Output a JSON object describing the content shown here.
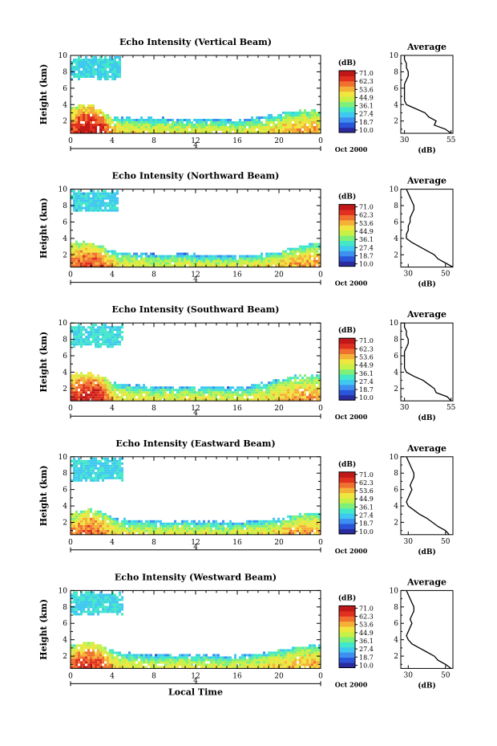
{
  "figure": {
    "x_axis_label": "Local Time",
    "date_label": "Oct 2000",
    "center_tick_label": "4",
    "unit_label": "(dB)",
    "avg_title": "Average",
    "avg_xlabel": "(dB)",
    "y_axis_label": "Height (km)"
  },
  "colorbar": {
    "ticks": [
      "71.0",
      "62.3",
      "53.6",
      "44.9",
      "36.1",
      "27.4",
      "18.7",
      "10.0"
    ],
    "colors": [
      "#2b2ba0",
      "#2a55d8",
      "#3d8ff0",
      "#3fc8f0",
      "#43e8c8",
      "#7ef07a",
      "#c8f046",
      "#f0e640",
      "#f5b038",
      "#f07030",
      "#e03020",
      "#c01818"
    ]
  },
  "chart_data": [
    {
      "type": "heatmap",
      "title": "Echo Intensity (Vertical Beam)",
      "xlabel": "",
      "ylabel": "Height (km)",
      "xlim": [
        0,
        24
      ],
      "ylim": [
        0.5,
        10
      ],
      "x_ticks": [
        "0",
        "4",
        "8",
        "12",
        "16",
        "20",
        "0"
      ],
      "y_ticks": [
        "2",
        "4",
        "6",
        "8",
        "10"
      ],
      "colorbar_range": [
        10.0,
        71.0
      ],
      "cloud_top_km": [
        3.6,
        3.9,
        3.9,
        3.2,
        2.5,
        2.4,
        2.3,
        2.4,
        2.3,
        2.3,
        2.2,
        2.3,
        2.2,
        2.3,
        2.2,
        2.2,
        2.1,
        2.3,
        2.4,
        2.6,
        2.8,
        3.1,
        3.2,
        3.3,
        3.3
      ],
      "core_intensity_db": [
        60,
        66,
        68,
        66,
        52,
        48,
        47,
        47,
        46,
        46,
        46,
        47,
        46,
        46,
        46,
        45,
        45,
        46,
        47,
        48,
        50,
        52,
        54,
        54,
        54
      ],
      "upper_layer": {
        "x_start": 0,
        "x_end": 4.9,
        "base_km": 7.0,
        "top_km": 9.8,
        "intensity_db": 30
      },
      "average_profile": {
        "title": "Average",
        "xlabel": "(dB)",
        "x_ticks": [
          "30",
          "55"
        ],
        "xlim": [
          28,
          56
        ],
        "height_km": [
          0.5,
          1.0,
          1.5,
          2.0,
          2.5,
          3.0,
          3.5,
          4.0,
          4.5,
          5.0,
          5.5,
          6.0,
          6.5,
          7.0,
          7.5,
          8.0,
          8.5,
          9.0,
          9.5,
          10.0
        ],
        "value_db": [
          55,
          52,
          46,
          47,
          43,
          41,
          36,
          31,
          30,
          30,
          30,
          30,
          30,
          31,
          32,
          32,
          31,
          31,
          30,
          30
        ]
      }
    },
    {
      "type": "heatmap",
      "title": "Echo Intensity (Northward Beam)",
      "xlabel": "",
      "ylabel": "Height (km)",
      "xlim": [
        0,
        24
      ],
      "ylim": [
        0.5,
        10
      ],
      "x_ticks": [
        "0",
        "4",
        "8",
        "12",
        "16",
        "20",
        "0"
      ],
      "y_ticks": [
        "2",
        "4",
        "6",
        "8",
        "10"
      ],
      "colorbar_range": [
        10.0,
        71.0
      ],
      "cloud_top_km": [
        3.4,
        3.6,
        3.5,
        3.0,
        2.5,
        2.3,
        2.1,
        2.2,
        2.1,
        2.0,
        2.0,
        2.1,
        2.0,
        2.0,
        2.0,
        2.0,
        1.9,
        2.0,
        2.1,
        2.2,
        2.3,
        2.8,
        3.1,
        3.3,
        3.4
      ],
      "core_intensity_db": [
        56,
        60,
        62,
        58,
        50,
        47,
        46,
        46,
        45,
        45,
        46,
        46,
        45,
        45,
        45,
        44,
        45,
        46,
        47,
        48,
        50,
        52,
        54,
        54,
        54
      ],
      "upper_layer": {
        "x_start": 0,
        "x_end": 4.7,
        "base_km": 7.2,
        "top_km": 9.8,
        "intensity_db": 29
      },
      "average_profile": {
        "title": "Average",
        "xlabel": "(dB)",
        "x_ticks": [
          "30",
          "50"
        ],
        "xlim": [
          26,
          54
        ],
        "height_km": [
          0.5,
          1.0,
          1.5,
          2.0,
          2.5,
          3.0,
          3.5,
          4.0,
          4.5,
          5.0,
          5.5,
          6.0,
          6.5,
          7.0,
          7.5,
          8.0,
          8.5,
          9.0,
          9.5,
          10.0
        ],
        "value_db": [
          54,
          50,
          46,
          44,
          40,
          36,
          32,
          29,
          29,
          30,
          30,
          31,
          31,
          32,
          33,
          33,
          32,
          31,
          30,
          29
        ]
      }
    },
    {
      "type": "heatmap",
      "title": "Echo Intensity (Southward Beam)",
      "xlabel": "",
      "ylabel": "Height (km)",
      "xlim": [
        0,
        24
      ],
      "ylim": [
        0.5,
        10
      ],
      "x_ticks": [
        "0",
        "4",
        "8",
        "12",
        "16",
        "20",
        "0"
      ],
      "y_ticks": [
        "2",
        "4",
        "6",
        "8",
        "10"
      ],
      "colorbar_range": [
        10.0,
        71.0
      ],
      "cloud_top_km": [
        3.7,
        3.9,
        3.9,
        3.5,
        2.8,
        2.5,
        2.4,
        2.4,
        2.3,
        2.3,
        2.2,
        2.3,
        2.3,
        2.3,
        2.2,
        2.2,
        2.2,
        2.4,
        2.6,
        2.8,
        3.2,
        3.5,
        3.6,
        3.7,
        3.7
      ],
      "core_intensity_db": [
        62,
        66,
        68,
        64,
        52,
        48,
        47,
        47,
        46,
        46,
        46,
        47,
        46,
        46,
        46,
        45,
        45,
        46,
        47,
        48,
        50,
        52,
        54,
        54,
        54
      ],
      "upper_layer": {
        "x_start": 0,
        "x_end": 5.0,
        "base_km": 7.1,
        "top_km": 9.8,
        "intensity_db": 31
      },
      "average_profile": {
        "title": "Average",
        "xlabel": "(dB)",
        "x_ticks": [
          "30",
          "55"
        ],
        "xlim": [
          28,
          56
        ],
        "height_km": [
          0.5,
          1.0,
          1.5,
          2.0,
          2.5,
          3.0,
          3.5,
          4.0,
          4.5,
          5.0,
          5.5,
          6.0,
          6.5,
          7.0,
          7.5,
          8.0,
          8.5,
          9.0,
          9.5,
          10.0
        ],
        "value_db": [
          55,
          53,
          47,
          46,
          43,
          40,
          35,
          31,
          30,
          30,
          30,
          30,
          30,
          31,
          32,
          32,
          31,
          31,
          30,
          30
        ]
      }
    },
    {
      "type": "heatmap",
      "title": "Echo Intensity (Eastward Beam)",
      "xlabel": "",
      "ylabel": "Height (km)",
      "xlim": [
        0,
        24
      ],
      "ylim": [
        0.5,
        10
      ],
      "x_ticks": [
        "0",
        "4",
        "8",
        "12",
        "16",
        "20",
        "0"
      ],
      "y_ticks": [
        "2",
        "4",
        "6",
        "8",
        "10"
      ],
      "colorbar_range": [
        10.0,
        71.0
      ],
      "cloud_top_km": [
        3.2,
        3.4,
        3.6,
        3.3,
        2.6,
        2.4,
        2.2,
        2.3,
        2.2,
        2.1,
        2.1,
        2.2,
        2.1,
        2.1,
        2.1,
        2.1,
        2.0,
        2.1,
        2.2,
        2.3,
        2.5,
        2.8,
        3.0,
        3.1,
        3.1
      ],
      "core_intensity_db": [
        54,
        58,
        60,
        56,
        50,
        47,
        46,
        46,
        45,
        45,
        46,
        46,
        45,
        45,
        45,
        44,
        45,
        46,
        47,
        48,
        50,
        52,
        53,
        53,
        53
      ],
      "upper_layer": {
        "x_start": 0,
        "x_end": 5.0,
        "base_km": 7.0,
        "top_km": 9.8,
        "intensity_db": 30
      },
      "average_profile": {
        "title": "Average",
        "xlabel": "(dB)",
        "x_ticks": [
          "30",
          "50"
        ],
        "xlim": [
          26,
          54
        ],
        "height_km": [
          0.5,
          1.0,
          1.5,
          2.0,
          2.5,
          3.0,
          3.5,
          4.0,
          4.5,
          5.0,
          5.5,
          6.0,
          6.5,
          7.0,
          7.5,
          8.0,
          8.5,
          9.0,
          9.5,
          10.0
        ],
        "value_db": [
          52,
          50,
          46,
          43,
          40,
          36,
          33,
          30,
          29,
          30,
          31,
          32,
          31,
          32,
          33,
          33,
          32,
          31,
          30,
          29
        ]
      }
    },
    {
      "type": "heatmap",
      "title": "Echo Intensity (Westward Beam)",
      "xlabel": "Local Time",
      "ylabel": "Height (km)",
      "xlim": [
        0,
        24
      ],
      "ylim": [
        0.5,
        10
      ],
      "x_ticks": [
        "0",
        "4",
        "8",
        "12",
        "16",
        "20",
        "0"
      ],
      "y_ticks": [
        "2",
        "4",
        "6",
        "8",
        "10"
      ],
      "colorbar_range": [
        10.0,
        71.0
      ],
      "cloud_top_km": [
        3.3,
        3.6,
        3.8,
        3.4,
        2.7,
        2.4,
        2.3,
        2.3,
        2.2,
        2.2,
        2.1,
        2.2,
        2.2,
        2.2,
        2.1,
        2.1,
        2.1,
        2.2,
        2.3,
        2.5,
        2.8,
        3.0,
        3.2,
        3.3,
        3.3
      ],
      "core_intensity_db": [
        58,
        62,
        64,
        60,
        51,
        47,
        46,
        46,
        45,
        45,
        46,
        46,
        45,
        45,
        45,
        44,
        45,
        46,
        47,
        48,
        50,
        52,
        53,
        53,
        53
      ],
      "upper_layer": {
        "x_start": 0,
        "x_end": 5.0,
        "base_km": 7.1,
        "top_km": 9.8,
        "intensity_db": 30
      },
      "average_profile": {
        "title": "Average",
        "xlabel": "(dB)",
        "x_ticks": [
          "30",
          "50"
        ],
        "xlim": [
          26,
          54
        ],
        "height_km": [
          0.5,
          1.0,
          1.5,
          2.0,
          2.5,
          3.0,
          3.5,
          4.0,
          4.5,
          5.0,
          5.5,
          6.0,
          6.5,
          7.0,
          7.5,
          8.0,
          8.5,
          9.0,
          9.5,
          10.0
        ],
        "value_db": [
          53,
          50,
          46,
          44,
          40,
          36,
          32,
          30,
          29,
          30,
          31,
          32,
          31,
          32,
          33,
          33,
          32,
          31,
          30,
          29
        ]
      }
    }
  ]
}
